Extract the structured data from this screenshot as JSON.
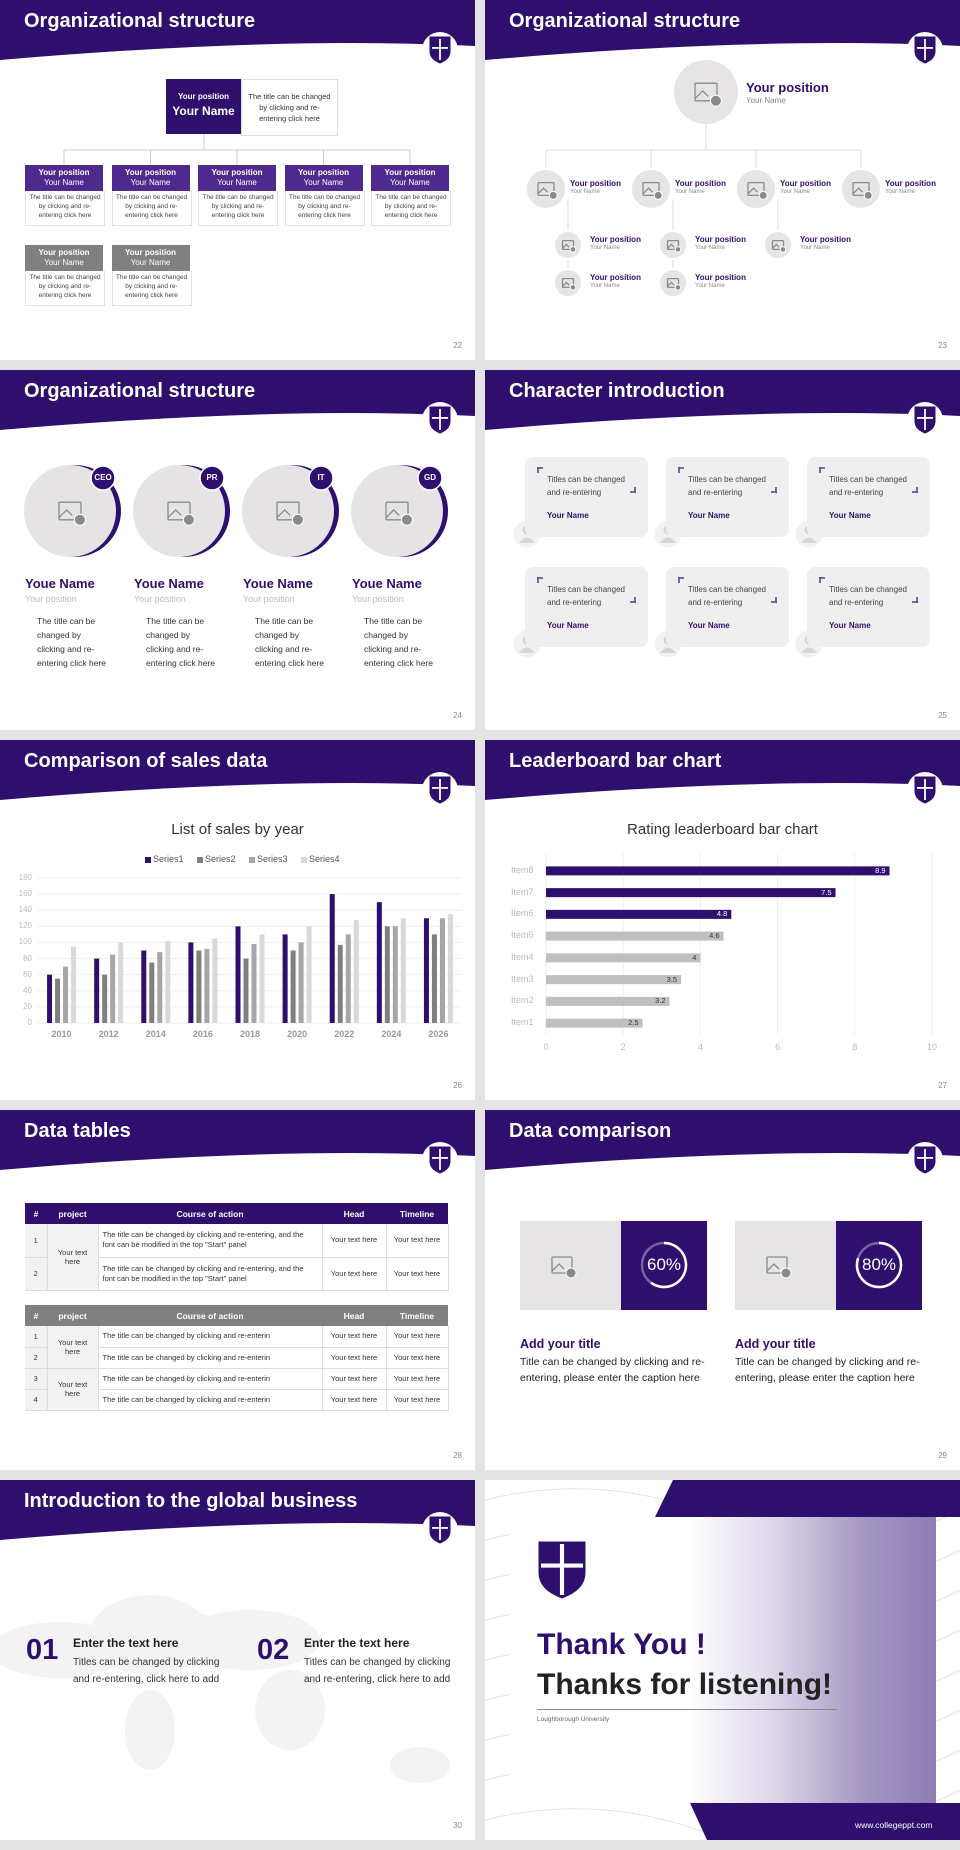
{
  "slides": [
    {
      "title": "Organizational structure",
      "page": "22",
      "top": {
        "position": "Your position",
        "name": "Your Name",
        "text": "The title can be changed by clicking and re-entering click here"
      },
      "members": [
        {
          "position": "Your position",
          "name": "Your Name",
          "text": "The title can be changed by clicking and re-entering click here"
        },
        {
          "position": "Your position",
          "name": "Your Name",
          "text": "The title can be changed by clicking and re-entering click here"
        },
        {
          "position": "Your position",
          "name": "Your Name",
          "text": "The title can be changed by clicking and re-entering click here"
        },
        {
          "position": "Your position",
          "name": "Your Name",
          "text": "The title can be changed by clicking and re-entering click here"
        },
        {
          "position": "Your position",
          "name": "Your Name",
          "text": "The title can be changed by clicking and re-entering click here"
        },
        {
          "position": "Your position",
          "name": "Your Name",
          "text": "The title can be changed by clicking and re-entering click here"
        },
        {
          "position": "Your position",
          "name": "Your Name",
          "text": "The title can be changed by clicking and re-entering click here"
        }
      ]
    },
    {
      "title": "Organizational structure",
      "page": "23",
      "top": {
        "position": "Your position",
        "name": "Your Name"
      },
      "groups": [
        {
          "position": "Your position",
          "name": "Your Name",
          "members": [
            {
              "position": "Your position",
              "name": "Your Name"
            },
            {
              "position": "Your position",
              "name": "Your Name"
            }
          ]
        },
        {
          "position": "Your position",
          "name": "Your Name",
          "members": [
            {
              "position": "Your position",
              "name": "Your Name"
            },
            {
              "position": "Your position",
              "name": "Your Name"
            }
          ]
        },
        {
          "position": "Your position",
          "name": "Your Name",
          "members": [
            {
              "position": "Your position",
              "name": "Your Name"
            }
          ]
        },
        {
          "position": "Your position",
          "name": "Your Name"
        }
      ]
    },
    {
      "title": "Organizational structure",
      "page": "24",
      "people": [
        {
          "badge": "CEO",
          "name": "Youe Name",
          "position": "Your position",
          "text": "The title can be changed by clicking and re-entering click here"
        },
        {
          "badge": "PR",
          "name": "Youe Name",
          "position": "Your position",
          "text": "The title can be changed by clicking and re-entering click here"
        },
        {
          "badge": "IT",
          "name": "Youe Name",
          "position": "Your position",
          "text": "The title can be changed by clicking and re-entering click here"
        },
        {
          "badge": "GD",
          "name": "Youe Name",
          "position": "Your position",
          "text": "The title can be changed by clicking and re-entering click here"
        }
      ]
    },
    {
      "title": "Character introduction",
      "page": "25",
      "cards": [
        {
          "quote": "Titles can be changed and re-entering",
          "name": "Your Name"
        },
        {
          "quote": "Titles can be changed and re-entering",
          "name": "Your Name"
        },
        {
          "quote": "Titles can be changed and re-entering",
          "name": "Your Name"
        },
        {
          "quote": "Titles can be changed and re-entering",
          "name": "Your Name"
        },
        {
          "quote": "Titles can be changed and re-entering",
          "name": "Your Name"
        },
        {
          "quote": "Titles can be changed and re-entering",
          "name": "Your Name"
        }
      ]
    },
    {
      "title": "Comparison of sales data",
      "page": "26",
      "chart_data": {
        "type": "bar",
        "title": "List of sales by year",
        "categories": [
          "2010",
          "2012",
          "2014",
          "2016",
          "2018",
          "2020",
          "2022",
          "2024",
          "2026"
        ],
        "series": [
          {
            "name": "Series1",
            "color": "#2e0f6e",
            "values": [
              60,
              80,
              90,
              100,
              120,
              110,
              160,
              150,
              130
            ]
          },
          {
            "name": "Series2",
            "color": "#7f7f7f",
            "values": [
              55,
              60,
              75,
              90,
              80,
              90,
              97,
              120,
              110
            ]
          },
          {
            "name": "Series3",
            "color": "#a6a6a6",
            "values": [
              70,
              85,
              88,
              92,
              98,
              100,
              110,
              120,
              130
            ]
          },
          {
            "name": "Series4",
            "color": "#d9d9d9",
            "values": [
              95,
              100,
              102,
              105,
              110,
              120,
              128,
              130,
              135
            ]
          }
        ],
        "ylim": [
          0,
          180
        ],
        "yticks": [
          0,
          20,
          40,
          60,
          80,
          100,
          120,
          140,
          160,
          180
        ],
        "grid": true
      }
    },
    {
      "title": "Leaderboard bar chart",
      "page": "27",
      "chart_data": {
        "type": "barh",
        "title": "Rating leaderboard bar chart",
        "categories": [
          "Item1",
          "Item2",
          "Item3",
          "Item4",
          "Item5",
          "Item6",
          "Item7",
          "Item8"
        ],
        "values": [
          2.5,
          3.2,
          3.5,
          4,
          4.6,
          4.8,
          7.5,
          8.9
        ],
        "colors": [
          "#bfbfbf",
          "#bfbfbf",
          "#bfbfbf",
          "#bfbfbf",
          "#bfbfbf",
          "#2e0f6e",
          "#2e0f6e",
          "#2e0f6e"
        ],
        "xlim": [
          0,
          10
        ],
        "xticks": [
          0,
          2,
          4,
          6,
          8,
          10
        ],
        "grid": true
      }
    },
    {
      "title": "Data tables",
      "page": "28",
      "tables": [
        {
          "header": [
            "#",
            "project",
            "Course of action",
            "Head",
            "Timeline"
          ],
          "projects": [
            "Your text here"
          ],
          "rows": [
            [
              "1",
              "The title can be changed by clicking and re-entering, and the font can be modified in the top \"Start\" panel",
              "Your text here",
              "Your text here"
            ],
            [
              "2",
              "The title can be changed by clicking and re-entering, and the font can be modified in the top \"Start\" panel",
              "Your text here",
              "Your text here"
            ]
          ]
        },
        {
          "header": [
            "#",
            "project",
            "Course of action",
            "Head",
            "Timeline"
          ],
          "projects": [
            "Your text here",
            "Your text here"
          ],
          "rows": [
            [
              "1",
              "The title can be changed by clicking and re-enterin",
              "Your text here",
              "Your text here"
            ],
            [
              "2",
              "The title can be changed by clicking and re-enterin",
              "Your text here",
              "Your text here"
            ],
            [
              "3",
              "The title can be changed by clicking and re-enterin",
              "Your text here",
              "Your text here"
            ],
            [
              "4",
              "The title can be changed by clicking and re-enterin",
              "Your text here",
              "Your text here"
            ]
          ]
        }
      ]
    },
    {
      "title": "Data comparison",
      "page": "29",
      "items": [
        {
          "percent": {
            "value": 60,
            "label": "60%"
          },
          "title": "Add your title",
          "text": "Title can be changed by clicking and re-entering, please enter the caption here"
        },
        {
          "percent": {
            "value": 80,
            "label": "80%"
          },
          "title": "Add your title",
          "text": "Title can be changed by clicking and re-entering, please enter the caption here"
        }
      ]
    },
    {
      "title": "Introduction to the global business",
      "page": "30",
      "points": [
        {
          "number": "01",
          "title": "Enter the text here",
          "text": "Titles can be changed by clicking and re-entering, click here to add"
        },
        {
          "number": "02",
          "title": "Enter the text here",
          "text": "Titles can be changed by clicking and re-entering, click here to add"
        }
      ]
    },
    {
      "headline": "Thank You !",
      "subline": "Thanks for listening!",
      "university": "Loughborough University",
      "website": "www.collegeppt.com"
    }
  ]
}
